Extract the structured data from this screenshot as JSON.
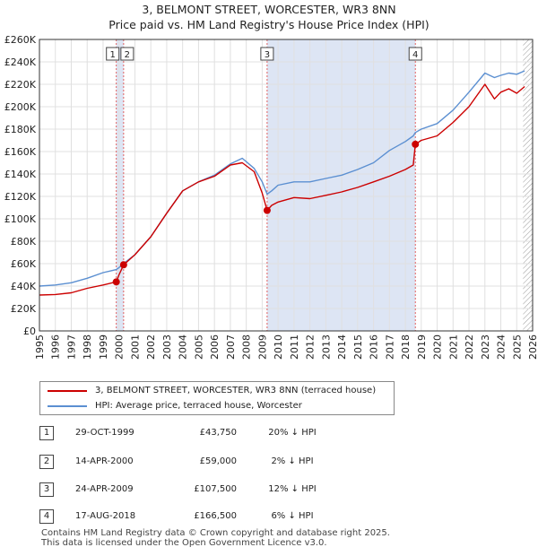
{
  "title_line1": "3, BELMONT STREET, WORCESTER, WR3 8NN",
  "title_line2": "Price paid vs. HM Land Registry's House Price Index (HPI)",
  "chart_data": {
    "type": "line",
    "title": "3, BELMONT STREET, WORCESTER, WR3 8NN — Price paid vs. HM Land Registry's House Price Index (HPI)",
    "xlim": [
      1995,
      2026
    ],
    "ylim": [
      0,
      260000
    ],
    "yticks": [
      0,
      20000,
      40000,
      60000,
      80000,
      100000,
      120000,
      140000,
      160000,
      180000,
      200000,
      220000,
      240000,
      260000
    ],
    "ytick_labels": [
      "£0",
      "£20K",
      "£40K",
      "£60K",
      "£80K",
      "£100K",
      "£120K",
      "£140K",
      "£160K",
      "£180K",
      "£200K",
      "£220K",
      "£240K",
      "£260K"
    ],
    "xticks": [
      1995,
      1996,
      1997,
      1998,
      1999,
      2000,
      2001,
      2002,
      2003,
      2004,
      2005,
      2006,
      2007,
      2008,
      2009,
      2010,
      2011,
      2012,
      2013,
      2014,
      2015,
      2016,
      2017,
      2018,
      2019,
      2020,
      2021,
      2022,
      2023,
      2024,
      2025,
      2026
    ],
    "shaded_spans": [
      [
        1999.83,
        2000.29
      ],
      [
        2009.31,
        2018.63
      ]
    ],
    "hatched_from": 2025.4,
    "series": [
      {
        "name": "3, BELMONT STREET, WORCESTER, WR3 8NN (terraced house)",
        "color": "#cc0000",
        "x": [
          1995.0,
          1996.0,
          1997.0,
          1998.0,
          1999.0,
          1999.83,
          2000.0,
          2000.29,
          2001.0,
          2002.0,
          2003.0,
          2004.0,
          2005.0,
          2006.0,
          2007.0,
          2007.75,
          2008.5,
          2009.0,
          2009.31,
          2009.6,
          2010.0,
          2011.0,
          2012.0,
          2013.0,
          2014.0,
          2015.0,
          2016.0,
          2017.0,
          2018.0,
          2018.5,
          2018.63,
          2019.0,
          2020.0,
          2021.0,
          2022.0,
          2023.0,
          2023.6,
          2024.0,
          2024.5,
          2025.0,
          2025.5
        ],
        "y": [
          32000,
          32500,
          34000,
          38000,
          41000,
          43750,
          50000,
          59000,
          68000,
          84000,
          105000,
          125000,
          133000,
          138000,
          148000,
          150000,
          142000,
          123000,
          107500,
          112000,
          115000,
          119000,
          118000,
          121000,
          124000,
          128000,
          133000,
          138000,
          144000,
          148000,
          166500,
          170000,
          174000,
          186000,
          200000,
          220000,
          207000,
          213000,
          216000,
          212000,
          218000
        ]
      },
      {
        "name": "HPI: Average price, terraced house, Worcester",
        "color": "#5b8fd1",
        "x": [
          1995.0,
          1996.0,
          1997.0,
          1998.0,
          1999.0,
          1999.83,
          2000.0,
          2000.29,
          2001.0,
          2002.0,
          2003.0,
          2004.0,
          2005.0,
          2006.0,
          2007.0,
          2007.75,
          2008.5,
          2009.0,
          2009.31,
          2009.6,
          2010.0,
          2011.0,
          2012.0,
          2013.0,
          2014.0,
          2015.0,
          2016.0,
          2017.0,
          2018.0,
          2018.5,
          2018.63,
          2019.0,
          2020.0,
          2021.0,
          2022.0,
          2023.0,
          2023.6,
          2024.0,
          2024.5,
          2025.0,
          2025.5
        ],
        "y": [
          40000,
          41000,
          43000,
          47000,
          52000,
          54700,
          56500,
          60200,
          68000,
          84000,
          105000,
          125000,
          133000,
          139000,
          149000,
          154000,
          145000,
          133000,
          122000,
          125000,
          130000,
          133000,
          133000,
          136000,
          139000,
          144000,
          150000,
          161000,
          169000,
          174000,
          177000,
          180000,
          185000,
          197000,
          213000,
          230000,
          226000,
          228000,
          230000,
          229000,
          232000
        ]
      }
    ],
    "sales": [
      {
        "num": "1",
        "year": 1999.83,
        "price": 43750
      },
      {
        "num": "2",
        "year": 2000.29,
        "price": 59000
      },
      {
        "num": "3",
        "year": 2009.31,
        "price": 107500
      },
      {
        "num": "4",
        "year": 2018.63,
        "price": 166500
      }
    ]
  },
  "legend": {
    "red_label": "3, BELMONT STREET, WORCESTER, WR3 8NN (terraced house)",
    "blue_label": "HPI: Average price, terraced house, Worcester",
    "red_color": "#cc0000",
    "blue_color": "#5b8fd1"
  },
  "sales_table": [
    {
      "num": "1",
      "date": "29-OCT-1999",
      "price": "£43,750",
      "hpi": "20% ↓ HPI"
    },
    {
      "num": "2",
      "date": "14-APR-2000",
      "price": "£59,000",
      "hpi": "2% ↓ HPI"
    },
    {
      "num": "3",
      "date": "24-APR-2009",
      "price": "£107,500",
      "hpi": "12% ↓ HPI"
    },
    {
      "num": "4",
      "date": "17-AUG-2018",
      "price": "£166,500",
      "hpi": "6% ↓ HPI"
    }
  ],
  "footer": {
    "line1": "Contains HM Land Registry data © Crown copyright and database right 2025.",
    "line2": "This data is licensed under the Open Government Licence v3.0."
  }
}
